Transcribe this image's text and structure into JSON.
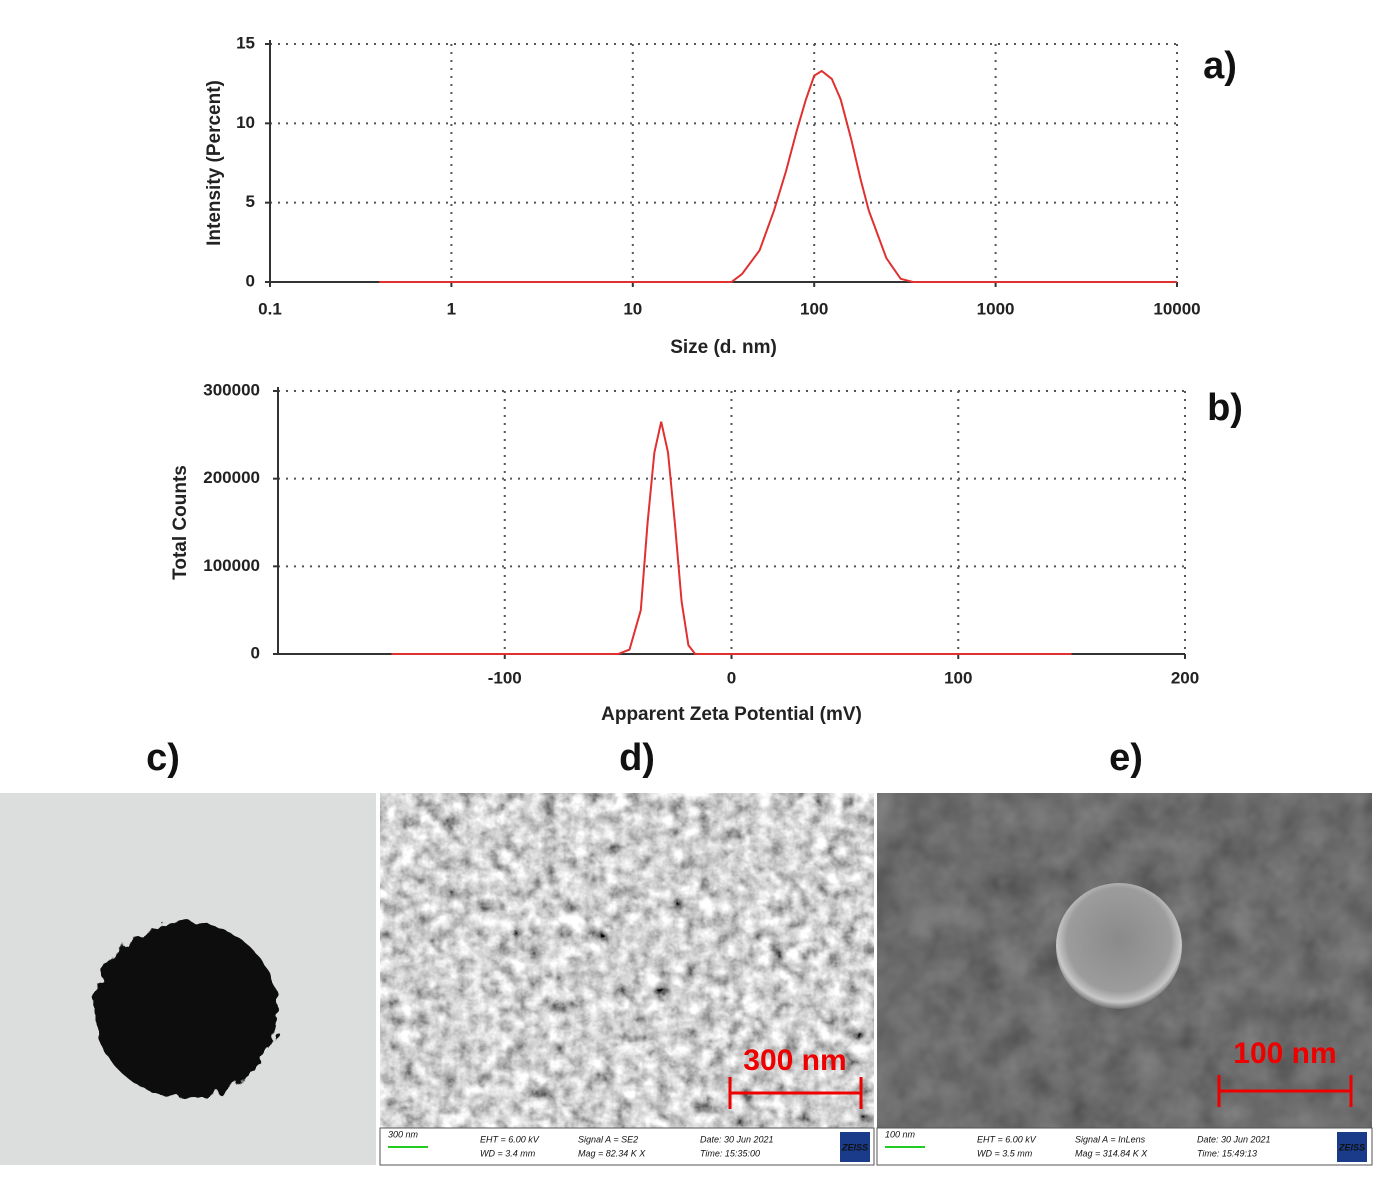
{
  "chart_data": [
    {
      "type": "line",
      "panel_label": "a)",
      "y_label": "Intensity (Percent)",
      "x_label": "Size (d. nm)",
      "xscale": "log",
      "x": [
        0.4,
        1,
        10,
        30,
        35,
        40,
        50,
        60,
        70,
        80,
        90,
        100,
        110,
        125,
        140,
        160,
        180,
        200,
        250,
        300,
        350,
        1000,
        10000
      ],
      "values": [
        0,
        0,
        0,
        0,
        0,
        0.5,
        2,
        4.5,
        7,
        9.5,
        11.5,
        13,
        13.3,
        12.8,
        11.5,
        9,
        6.5,
        4.5,
        1.5,
        0.2,
        0,
        0,
        0
      ],
      "color": "#e03030",
      "xlim": [
        0.1,
        10000
      ],
      "ylim": [
        0,
        15
      ],
      "xticks": [
        0.1,
        1,
        10,
        100,
        1000,
        10000
      ],
      "yticks": [
        0,
        5,
        10,
        15
      ],
      "grid": true
    },
    {
      "type": "line",
      "panel_label": "b)",
      "y_label": "Total Counts",
      "x_label": "Apparent Zeta Potential (mV)",
      "xscale": "linear",
      "x": [
        -150,
        -50,
        -45,
        -40,
        -37,
        -34,
        -31,
        -28,
        -25,
        -22,
        -19,
        -16,
        150
      ],
      "values": [
        0,
        0,
        5000,
        50000,
        150000,
        230000,
        265000,
        230000,
        150000,
        60000,
        10000,
        0,
        0
      ],
      "color": "#e03030",
      "xlim": [
        -200,
        200
      ],
      "ylim": [
        0,
        300000
      ],
      "xticks": [
        -100,
        0,
        100,
        200
      ],
      "yticks": [
        0,
        100000,
        200000,
        300000
      ],
      "grid": true
    }
  ],
  "panels": [
    {
      "label": "c)"
    },
    {
      "label": "d)",
      "scale_bar": "300 nm",
      "info": [
        "300 nm",
        "EHT = 6.00 kV",
        "WD = 3.4 mm",
        "Signal A = SE2",
        "Mag = 82.34 K X",
        "Date: 30 Jun 2021",
        "Time: 15:35:00",
        "ZEISS"
      ]
    },
    {
      "label": "e)",
      "scale_bar": "100 nm",
      "info": [
        "100 nm",
        "EHT = 6.00 kV",
        "WD = 3.5 mm",
        "Signal A = InLens",
        "Mag = 314.84 K X",
        "Date: 30 Jun 2021",
        "Time: 15:49:13",
        "ZEISS"
      ]
    }
  ]
}
